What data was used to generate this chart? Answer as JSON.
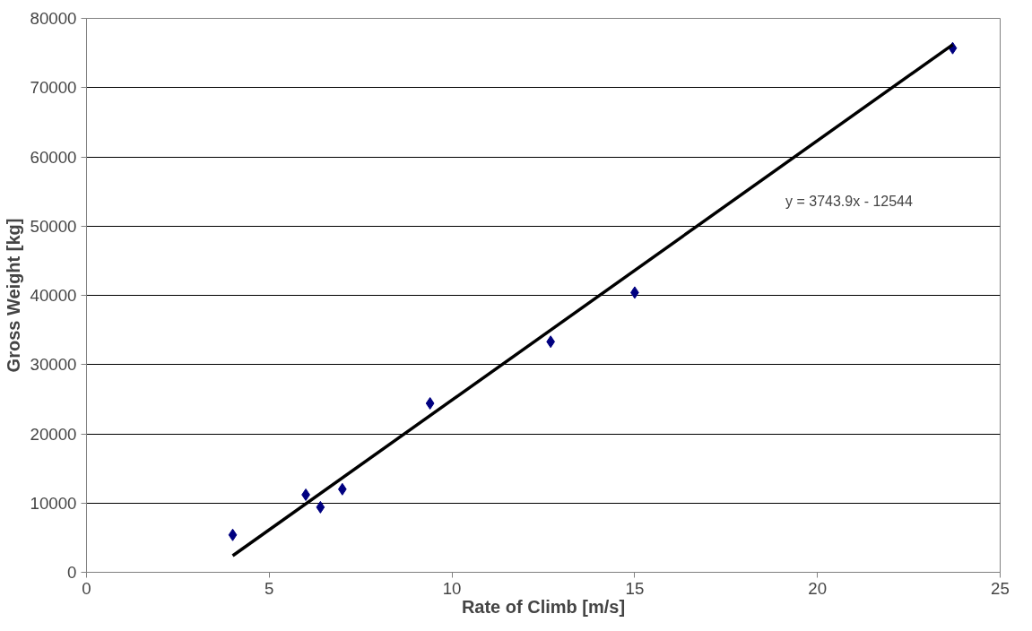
{
  "chart_data": {
    "type": "scatter",
    "xlabel": "Rate of Climb [m/s]",
    "ylabel": "Gross Weight [kg]",
    "xlim": [
      0,
      25
    ],
    "ylim": [
      0,
      80000
    ],
    "xticks": [
      0,
      5,
      10,
      15,
      20,
      25
    ],
    "yticks": [
      0,
      10000,
      20000,
      30000,
      40000,
      50000,
      60000,
      70000,
      80000
    ],
    "grid": "y",
    "series": [
      {
        "color": "#000080",
        "marker": "diamond",
        "x": [
          4.0,
          6.0,
          6.4,
          7.0,
          9.4,
          12.7,
          15.0,
          23.7
        ],
        "values": [
          5400,
          11200,
          9400,
          12000,
          24400,
          33300,
          40400,
          75700
        ]
      },
      {
        "type": "line",
        "color": "#000000",
        "x": [
          4.0,
          23.7
        ],
        "values": [
          2400,
          76200
        ]
      }
    ],
    "annotations": [
      "y = 3743.9x - 12544"
    ]
  }
}
